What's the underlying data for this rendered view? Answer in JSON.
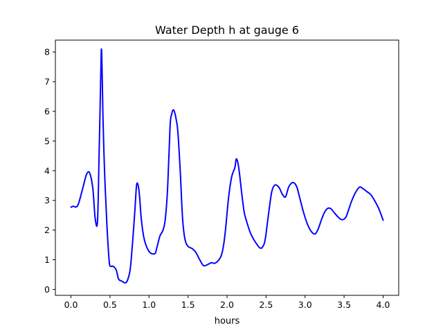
{
  "chart_data": {
    "type": "line",
    "title": "Water Depth h at gauge 6",
    "xlabel": "hours",
    "ylabel": "",
    "xlim": [
      -0.2,
      4.2
    ],
    "ylim": [
      -0.2,
      8.4
    ],
    "x_ticks": [
      0.0,
      0.5,
      1.0,
      1.5,
      2.0,
      2.5,
      3.0,
      3.5,
      4.0
    ],
    "x_tick_labels": [
      "0.0",
      "0.5",
      "1.0",
      "1.5",
      "2.0",
      "2.5",
      "3.0",
      "3.5",
      "4.0"
    ],
    "y_ticks": [
      0,
      1,
      2,
      3,
      4,
      5,
      6,
      7,
      8
    ],
    "y_tick_labels": [
      "0",
      "1",
      "2",
      "3",
      "4",
      "5",
      "6",
      "7",
      "8"
    ],
    "grid": false,
    "legend": "none",
    "series": [
      {
        "color": "#0000ff",
        "x": [
          0.0,
          0.03,
          0.07,
          0.1,
          0.15,
          0.2,
          0.24,
          0.28,
          0.31,
          0.34,
          0.36,
          0.38,
          0.39,
          0.4,
          0.41,
          0.43,
          0.46,
          0.49,
          0.51,
          0.54,
          0.58,
          0.61,
          0.65,
          0.7,
          0.73,
          0.76,
          0.79,
          0.82,
          0.84,
          0.86,
          0.88,
          0.9,
          0.93,
          0.96,
          1.0,
          1.04,
          1.08,
          1.1,
          1.14,
          1.18,
          1.21,
          1.24,
          1.27,
          1.29,
          1.31,
          1.33,
          1.35,
          1.37,
          1.4,
          1.43,
          1.46,
          1.5,
          1.55,
          1.6,
          1.65,
          1.7,
          1.76,
          1.8,
          1.84,
          1.88,
          1.92,
          1.95,
          1.98,
          2.02,
          2.06,
          2.1,
          2.12,
          2.15,
          2.19,
          2.22,
          2.25,
          2.3,
          2.35,
          2.42,
          2.46,
          2.49,
          2.53,
          2.57,
          2.6,
          2.63,
          2.67,
          2.71,
          2.75,
          2.79,
          2.84,
          2.89,
          2.93,
          2.98,
          3.03,
          3.08,
          3.13,
          3.17,
          3.21,
          3.25,
          3.29,
          3.33,
          3.37,
          3.42,
          3.47,
          3.52,
          3.56,
          3.6,
          3.65,
          3.7,
          3.74,
          3.79,
          3.84,
          3.89,
          3.94,
          3.98,
          4.0
        ],
        "y": [
          2.77,
          2.8,
          2.78,
          2.92,
          3.4,
          3.88,
          3.92,
          3.4,
          2.4,
          2.3,
          4.5,
          7.0,
          8.1,
          7.2,
          5.8,
          4.0,
          2.2,
          0.95,
          0.78,
          0.78,
          0.65,
          0.35,
          0.28,
          0.22,
          0.35,
          0.7,
          1.6,
          2.7,
          3.5,
          3.52,
          3.1,
          2.4,
          1.8,
          1.5,
          1.28,
          1.2,
          1.22,
          1.4,
          1.8,
          2.0,
          2.4,
          3.5,
          5.5,
          5.9,
          6.05,
          5.95,
          5.7,
          5.3,
          4.0,
          2.4,
          1.7,
          1.45,
          1.38,
          1.25,
          1.0,
          0.8,
          0.85,
          0.9,
          0.88,
          0.95,
          1.1,
          1.4,
          2.0,
          3.1,
          3.8,
          4.1,
          4.4,
          4.1,
          3.2,
          2.6,
          2.3,
          1.9,
          1.65,
          1.4,
          1.45,
          1.7,
          2.5,
          3.25,
          3.48,
          3.52,
          3.42,
          3.2,
          3.12,
          3.45,
          3.6,
          3.48,
          3.1,
          2.6,
          2.2,
          1.95,
          1.87,
          2.05,
          2.35,
          2.6,
          2.73,
          2.72,
          2.6,
          2.45,
          2.35,
          2.42,
          2.7,
          3.0,
          3.28,
          3.45,
          3.4,
          3.3,
          3.2,
          3.0,
          2.75,
          2.48,
          2.33
        ]
      }
    ]
  }
}
